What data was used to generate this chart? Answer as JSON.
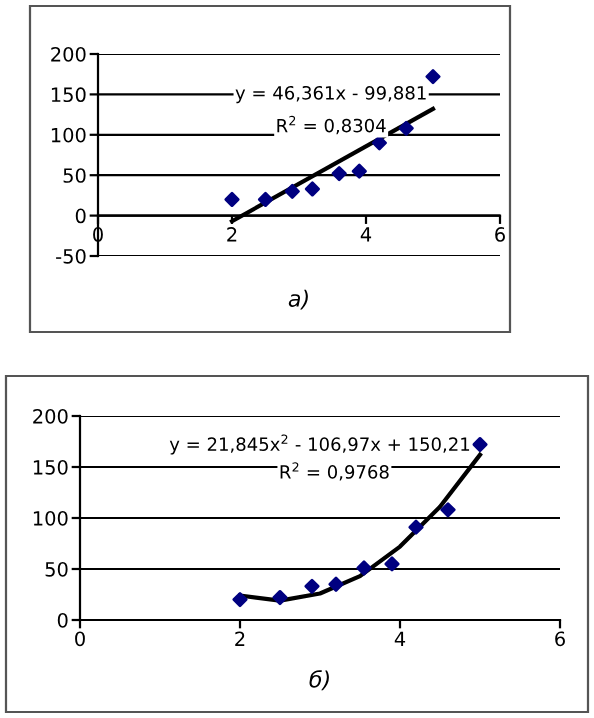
{
  "chart_data": [
    {
      "type": "scatter",
      "xlabel": "а)",
      "xlim": [
        0,
        6
      ],
      "ylim": [
        -50,
        200
      ],
      "xticks": [
        0,
        2,
        4,
        6
      ],
      "yticks": [
        -50,
        0,
        50,
        100,
        150,
        200
      ],
      "grid": "y",
      "marker": "diamond",
      "legend": false,
      "annotations": [
        "y = 46,361x - 99,881",
        "R$^{2}$ = 0,8304"
      ],
      "series": [
        {
          "color": "#000080",
          "x": [
            2.0,
            2.5,
            2.9,
            3.2,
            3.6,
            3.9,
            4.2,
            4.6,
            5.0
          ],
          "values": [
            20,
            20,
            30,
            33,
            52,
            55,
            90,
            108,
            172
          ]
        },
        {
          "type": "line",
          "marker": "none",
          "color": "#000000",
          "x": [
            2,
            5
          ],
          "values": [
            -7,
            132
          ]
        }
      ]
    },
    {
      "type": "scatter",
      "xlabel": "б)",
      "xlim": [
        0,
        6
      ],
      "ylim": [
        0,
        200
      ],
      "xticks": [
        0,
        2,
        4,
        6
      ],
      "yticks": [
        0,
        50,
        100,
        150,
        200
      ],
      "grid": "y",
      "marker": "diamond",
      "legend": false,
      "annotations": [
        "y = 21,845x$^{2}$ - 106,97x + 150,21",
        "R$^{2}$ = 0,9768"
      ],
      "series": [
        {
          "color": "#000080",
          "x": [
            2.0,
            2.5,
            2.9,
            3.2,
            3.55,
            3.9,
            4.2,
            4.6,
            5.0
          ],
          "values": [
            20,
            22,
            33,
            35,
            51,
            55,
            91,
            108,
            172
          ]
        },
        {
          "type": "line",
          "marker": "none",
          "color": "#000000",
          "x": [
            2,
            2.5,
            3,
            3.5,
            4,
            4.5,
            5
          ],
          "values": [
            24,
            19,
            26,
            43,
            72,
            111,
            162
          ]
        }
      ]
    }
  ]
}
